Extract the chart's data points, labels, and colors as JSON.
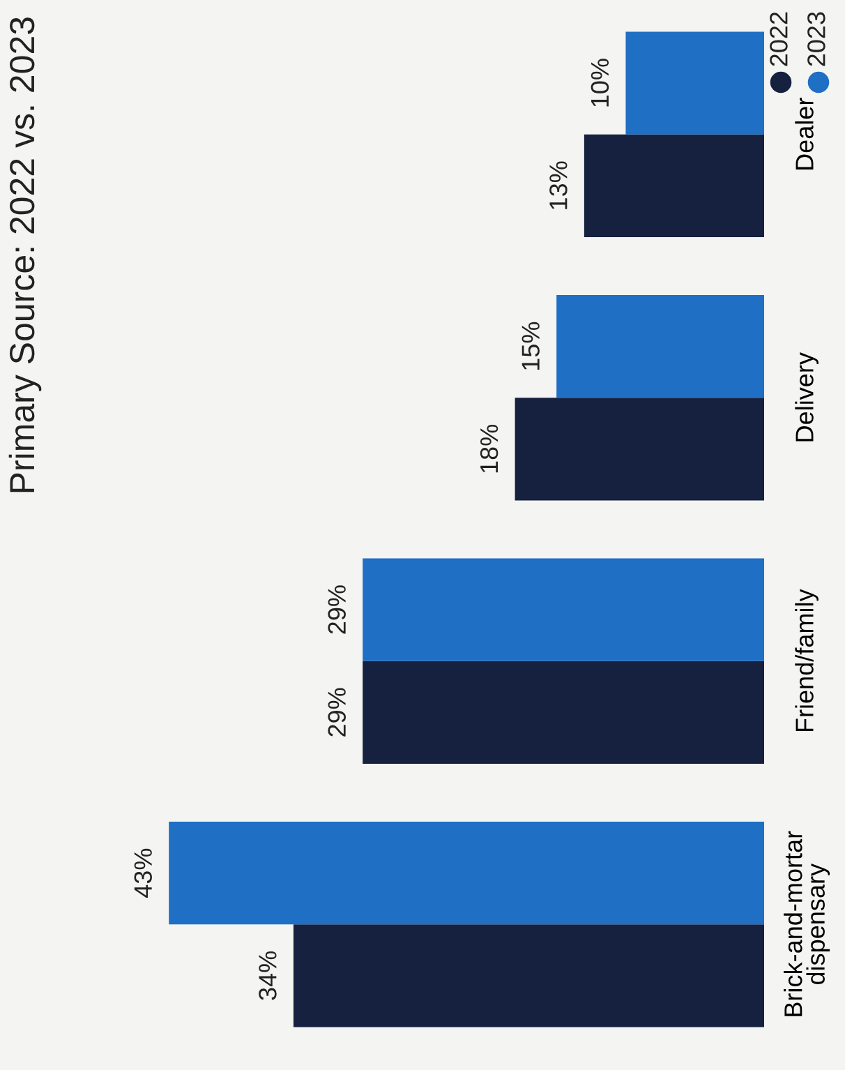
{
  "chart_data": {
    "type": "bar",
    "orientation": "horizontal",
    "title": "Primary Source: 2022 vs. 2023",
    "categories": [
      "Dealer",
      "Delivery",
      "Friend/family",
      "Brick-and-mortar dispensary"
    ],
    "series": [
      {
        "name": "2022",
        "color": "#15213f",
        "values": [
          13,
          18,
          29,
          34
        ],
        "value_labels": [
          "13%",
          "18%",
          "29%",
          "34%"
        ]
      },
      {
        "name": "2023",
        "color": "#1f6fc4",
        "values": [
          10,
          15,
          29,
          43
        ],
        "value_labels": [
          "10%",
          "15%",
          "29%",
          "43%"
        ]
      }
    ],
    "data_labels": true,
    "legend": "top right",
    "grid": false
  }
}
